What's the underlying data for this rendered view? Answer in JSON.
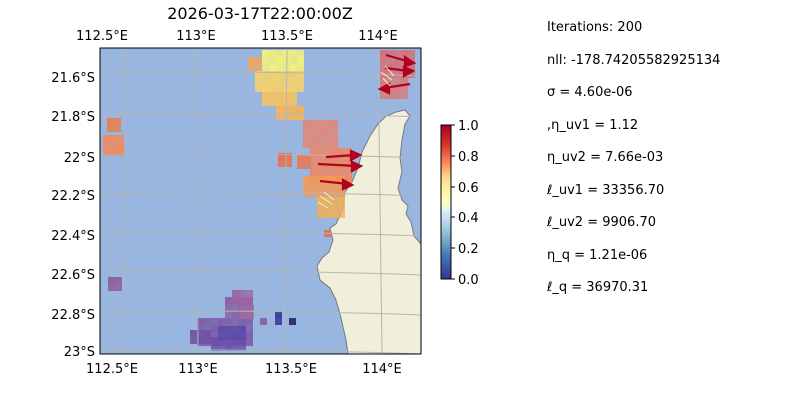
{
  "title": "2026-03-17T22:00:00Z",
  "axes": {
    "lon_ticks": [
      "112.5°E",
      "113°E",
      "113.5°E",
      "114°E"
    ],
    "lat_ticks": [
      "21.6°S",
      "21.8°S",
      "22°S",
      "22.2°S",
      "22.4°S",
      "22.6°S",
      "22.8°S",
      "23°S"
    ],
    "lon_range": [
      112.5,
      114.25
    ],
    "lat_range": [
      -23.0,
      -21.45
    ]
  },
  "colorbar": {
    "ticks": [
      "0.0",
      "0.2",
      "0.4",
      "0.6",
      "0.8",
      "1.0"
    ],
    "range": [
      0,
      1
    ],
    "colormap": "RdYlBu_r"
  },
  "colors": {
    "ocean": "#98b6e0",
    "land": "#efefdc",
    "coast": "#7a7a7a",
    "grid": "#b5b5b5",
    "arrow": "#b2001f"
  },
  "params": [
    "Iterations: 200",
    "nll: -178.74205582925134",
    "σ = 4.60e-06",
    ",η_uv1 = 1.12",
    "η_uv2 = 7.66e-03",
    "ℓ_uv1 = 33356.70",
    "ℓ_uv2 = 9906.70",
    "η_q = 1.21e-06",
    "ℓ_q = 36970.31"
  ]
}
